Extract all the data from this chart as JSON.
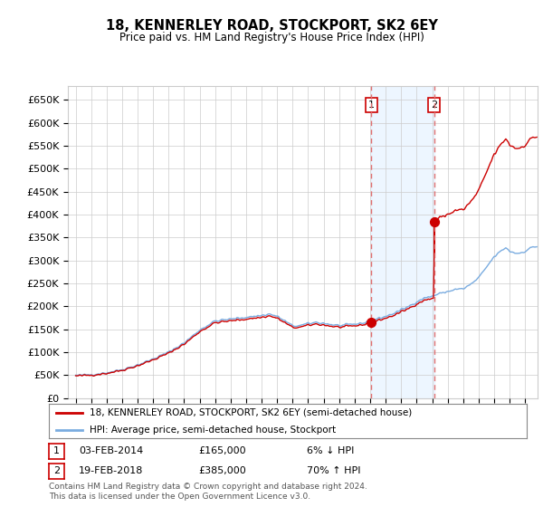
{
  "title": "18, KENNERLEY ROAD, STOCKPORT, SK2 6EY",
  "subtitle": "Price paid vs. HM Land Registry's House Price Index (HPI)",
  "legend_line1": "18, KENNERLEY ROAD, STOCKPORT, SK2 6EY (semi-detached house)",
  "legend_line2": "HPI: Average price, semi-detached house, Stockport",
  "footnote": "Contains HM Land Registry data © Crown copyright and database right 2024.\nThis data is licensed under the Open Government Licence v3.0.",
  "transaction1_date": "03-FEB-2014",
  "transaction1_price": "£165,000",
  "transaction1_hpi": "6% ↓ HPI",
  "transaction2_date": "19-FEB-2018",
  "transaction2_price": "£385,000",
  "transaction2_hpi": "70% ↑ HPI",
  "hpi_color": "#7aace0",
  "price_color": "#cc0000",
  "vline_color": "#e07070",
  "background_color": "#ffffff",
  "grid_color": "#cccccc",
  "ylim": [
    0,
    680000
  ],
  "yticks": [
    0,
    50000,
    100000,
    150000,
    200000,
    250000,
    300000,
    350000,
    400000,
    450000,
    500000,
    550000,
    600000,
    650000
  ],
  "transaction1_x": 2014.085,
  "transaction1_y": 165000,
  "transaction2_x": 2018.128,
  "transaction2_y": 385000,
  "shading_color": "#ddeeff",
  "xlim_start": 1994.5,
  "xlim_end": 2024.8
}
